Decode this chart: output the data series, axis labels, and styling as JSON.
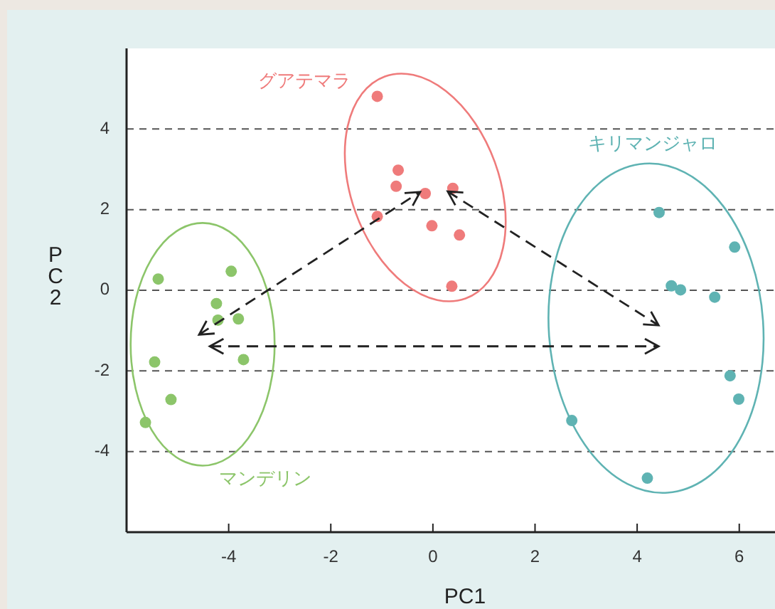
{
  "chart_data": {
    "type": "scatter",
    "xlabel": "PC1",
    "ylabel": "PC2",
    "xlim": [
      -6,
      6.7
    ],
    "ylim": [
      -6,
      6
    ],
    "xticks": [
      -4,
      -2,
      0,
      2,
      4,
      6
    ],
    "yticks": [
      -4,
      -2,
      0,
      2,
      4
    ],
    "grid": "y",
    "marker": "circle",
    "series": [
      {
        "name": "グアテマラ",
        "color": "#ef7b7b",
        "x": [
          -1.09,
          -0.68,
          -0.72,
          -0.15,
          0.39,
          -1.09,
          -0.02,
          0.52,
          0.37
        ],
        "values": [
          4.81,
          2.98,
          2.58,
          2.4,
          2.53,
          1.83,
          1.6,
          1.37,
          0.1
        ]
      },
      {
        "name": "キリマンジャロ",
        "color": "#5fb3b3",
        "x": [
          4.43,
          5.91,
          4.67,
          4.85,
          5.52,
          5.82,
          5.99,
          2.72,
          4.2
        ],
        "values": [
          1.93,
          1.07,
          0.11,
          0.01,
          -0.17,
          -2.12,
          -2.7,
          -3.23,
          -4.66
        ]
      },
      {
        "name": "マンデリン",
        "color": "#8cc56a",
        "x": [
          -5.38,
          -3.95,
          -4.24,
          -4.21,
          -3.81,
          -5.45,
          -3.71,
          -5.13,
          -5.63
        ],
        "values": [
          0.28,
          0.47,
          -0.33,
          -0.74,
          -0.71,
          -1.78,
          -1.72,
          -2.71,
          -3.28
        ]
      }
    ]
  }
}
